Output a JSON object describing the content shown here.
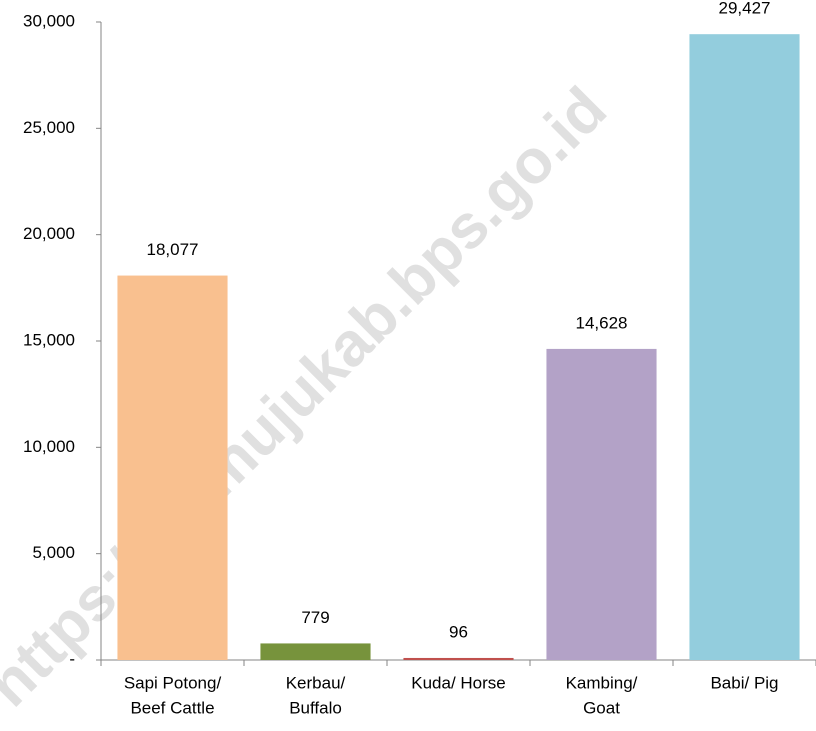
{
  "chart_data": {
    "type": "bar",
    "categories": [
      [
        "Sapi Potong/",
        "Beef Cattle"
      ],
      [
        "Kerbau/",
        "Buffalo"
      ],
      [
        "Kuda/ Horse"
      ],
      [
        "Kambing/",
        "Goat"
      ],
      [
        "Babi/ Pig"
      ]
    ],
    "values": [
      18077,
      779,
      96,
      14628,
      29427
    ],
    "value_labels": [
      "18,077",
      "779",
      "96",
      "14,628",
      "29,427"
    ],
    "colors": [
      "#f9c08f",
      "#77933c",
      "#c0504d",
      "#b3a2c7",
      "#93cddd"
    ],
    "ylim": [
      0,
      30000
    ],
    "yticks": [
      {
        "value": 0,
        "label": "-"
      },
      {
        "value": 5000,
        "label": "5,000"
      },
      {
        "value": 10000,
        "label": "10,000"
      },
      {
        "value": 15000,
        "label": "15,000"
      },
      {
        "value": 20000,
        "label": "20,000"
      },
      {
        "value": 25000,
        "label": "25,000"
      },
      {
        "value": 30000,
        "label": "30,000"
      }
    ],
    "grid": false,
    "watermark": "https://mamujukab.bps.go.id"
  }
}
